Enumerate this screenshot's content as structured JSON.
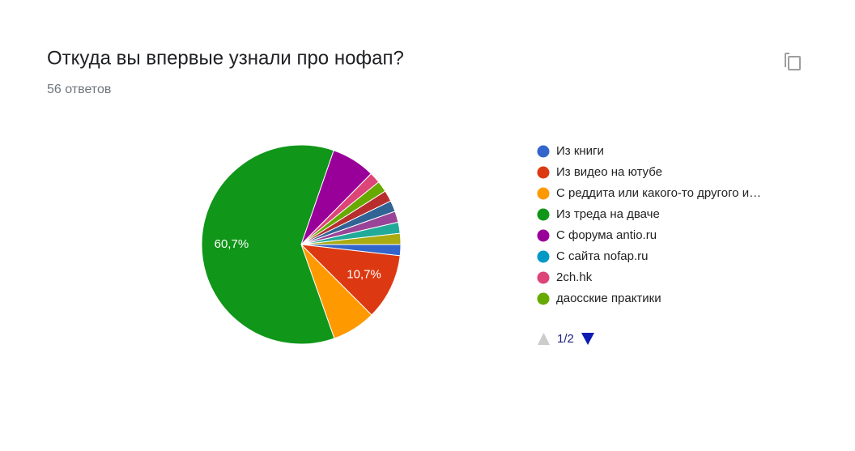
{
  "chart_data": {
    "type": "pie",
    "title": "Откуда вы впервые узнали про нофап?",
    "subtitle": "56 ответов",
    "categories": [
      "Из книги",
      "Из видео на ютубе",
      "С реддита или какого-то другого и…",
      "Из треда на дваче",
      "С форума antio.ru",
      "С сайта nofap.ru",
      "2ch.hk",
      "даосские практики",
      null,
      null,
      null,
      null,
      null
    ],
    "values": [
      1.8,
      10.7,
      7.1,
      60.7,
      7.1,
      0,
      1.8,
      1.8,
      1.8,
      1.8,
      1.8,
      1.8,
      1.8
    ],
    "value_labels": [
      null,
      "10,7%",
      null,
      "60,7%",
      null,
      null,
      null,
      null,
      null,
      null,
      null,
      null,
      null
    ],
    "colors": [
      "#3366cc",
      "#dc3912",
      "#ff9900",
      "#109618",
      "#990099",
      "#0099c6",
      "#dd4477",
      "#66aa00",
      "#b82e2e",
      "#316395",
      "#994499",
      "#22aa99",
      "#aaaa11"
    ],
    "legend_page": "1/2"
  }
}
